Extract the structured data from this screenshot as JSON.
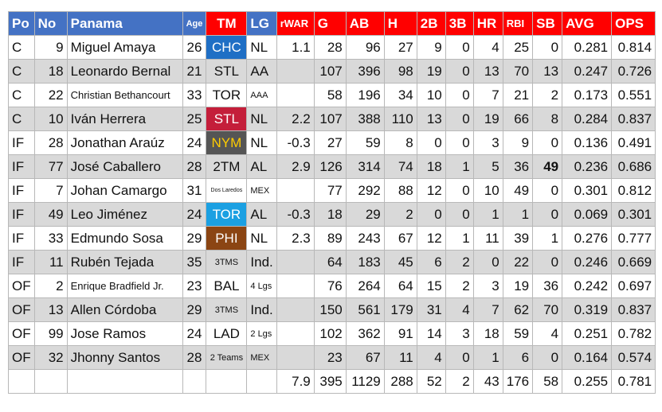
{
  "header": {
    "po": "Po",
    "no": "No",
    "team": "Panama",
    "age": "Age",
    "tm": "TM",
    "lg": "LG",
    "rwar": "rWAR",
    "g": "G",
    "ab": "AB",
    "h": "H",
    "2b": "2B",
    "3b": "3B",
    "hr": "HR",
    "rbi": "RBI",
    "sb": "SB",
    "avg": "AVG",
    "ops": "OPS"
  },
  "rows": [
    {
      "po": "C",
      "no": "9",
      "name": "Miguel Amaya",
      "age": "26",
      "tm": "CHC",
      "lg": "NL",
      "rwar": "1.1",
      "g": "28",
      "ab": "96",
      "h": "27",
      "b2": "9",
      "b3": "0",
      "hr": "4",
      "rbi": "25",
      "sb": "0",
      "avg": "0.281",
      "ops": "0.814"
    },
    {
      "po": "C",
      "no": "18",
      "name": "Leonardo Bernal",
      "age": "21",
      "tm": "STL",
      "lg": "AA",
      "rwar": "",
      "g": "107",
      "ab": "396",
      "h": "98",
      "b2": "19",
      "b3": "0",
      "hr": "13",
      "rbi": "70",
      "sb": "13",
      "avg": "0.247",
      "ops": "0.726"
    },
    {
      "po": "C",
      "no": "22",
      "name": "Christian Bethancourt",
      "age": "33",
      "tm": "TOR",
      "lg": "AAA",
      "rwar": "",
      "g": "58",
      "ab": "196",
      "h": "34",
      "b2": "10",
      "b3": "0",
      "hr": "7",
      "rbi": "21",
      "sb": "2",
      "avg": "0.173",
      "ops": "0.551"
    },
    {
      "po": "C",
      "no": "10",
      "name": "Iván Herrera",
      "age": "25",
      "tm": "STL",
      "lg": "NL",
      "rwar": "2.2",
      "g": "107",
      "ab": "388",
      "h": "110",
      "b2": "13",
      "b3": "0",
      "hr": "19",
      "rbi": "66",
      "sb": "8",
      "avg": "0.284",
      "ops": "0.837"
    },
    {
      "po": "IF",
      "no": "28",
      "name": "Jonathan Araúz",
      "age": "24",
      "tm": "NYM",
      "lg": "NL",
      "rwar": "-0.3",
      "g": "27",
      "ab": "59",
      "h": "8",
      "b2": "0",
      "b3": "0",
      "hr": "3",
      "rbi": "9",
      "sb": "0",
      "avg": "0.136",
      "ops": "0.491"
    },
    {
      "po": "IF",
      "no": "77",
      "name": "José Caballero",
      "age": "28",
      "tm": "2TM",
      "lg": "AL",
      "rwar": "2.9",
      "g": "126",
      "ab": "314",
      "h": "74",
      "b2": "18",
      "b3": "1",
      "hr": "5",
      "rbi": "36",
      "sb": "49",
      "avg": "0.236",
      "ops": "0.686"
    },
    {
      "po": "IF",
      "no": "7",
      "name": "Johan Camargo",
      "age": "31",
      "tm": "Dos Laredos",
      "lg": "MEX",
      "rwar": "",
      "g": "77",
      "ab": "292",
      "h": "88",
      "b2": "12",
      "b3": "0",
      "hr": "10",
      "rbi": "49",
      "sb": "0",
      "avg": "0.301",
      "ops": "0.812"
    },
    {
      "po": "IF",
      "no": "49",
      "name": "Leo Jiménez",
      "age": "24",
      "tm": "TOR",
      "lg": "AL",
      "rwar": "-0.3",
      "g": "18",
      "ab": "29",
      "h": "2",
      "b2": "0",
      "b3": "0",
      "hr": "1",
      "rbi": "1",
      "sb": "0",
      "avg": "0.069",
      "ops": "0.301"
    },
    {
      "po": "IF",
      "no": "33",
      "name": "Edmundo Sosa",
      "age": "29",
      "tm": "PHI",
      "lg": "NL",
      "rwar": "2.3",
      "g": "89",
      "ab": "243",
      "h": "67",
      "b2": "12",
      "b3": "1",
      "hr": "11",
      "rbi": "39",
      "sb": "1",
      "avg": "0.276",
      "ops": "0.777"
    },
    {
      "po": "IF",
      "no": "11",
      "name": "Rubén Tejada",
      "age": "35",
      "tm": "3TMS",
      "lg": "Ind.",
      "rwar": "",
      "g": "64",
      "ab": "183",
      "h": "45",
      "b2": "6",
      "b3": "2",
      "hr": "0",
      "rbi": "22",
      "sb": "0",
      "avg": "0.246",
      "ops": "0.669"
    },
    {
      "po": "OF",
      "no": "2",
      "name": "Enrique Bradfield Jr.",
      "age": "23",
      "tm": "BAL",
      "lg": "4 Lgs",
      "rwar": "",
      "g": "76",
      "ab": "264",
      "h": "64",
      "b2": "15",
      "b3": "2",
      "hr": "3",
      "rbi": "19",
      "sb": "36",
      "avg": "0.242",
      "ops": "0.697"
    },
    {
      "po": "OF",
      "no": "13",
      "name": "Allen Córdoba",
      "age": "29",
      "tm": "3TMS",
      "lg": "Ind.",
      "rwar": "",
      "g": "150",
      "ab": "561",
      "h": "179",
      "b2": "31",
      "b3": "4",
      "hr": "7",
      "rbi": "62",
      "sb": "70",
      "avg": "0.319",
      "ops": "0.837"
    },
    {
      "po": "OF",
      "no": "99",
      "name": "Jose Ramos",
      "age": "24",
      "tm": "LAD",
      "lg": "2 Lgs",
      "rwar": "",
      "g": "102",
      "ab": "362",
      "h": "91",
      "b2": "14",
      "b3": "3",
      "hr": "18",
      "rbi": "59",
      "sb": "4",
      "avg": "0.251",
      "ops": "0.782"
    },
    {
      "po": "OF",
      "no": "32",
      "name": "Jhonny Santos",
      "age": "28",
      "tm": "2 Teams",
      "lg": "MEX",
      "rwar": "",
      "g": "23",
      "ab": "67",
      "h": "11",
      "b2": "4",
      "b3": "0",
      "hr": "1",
      "rbi": "6",
      "sb": "0",
      "avg": "0.164",
      "ops": "0.574"
    }
  ],
  "totals": {
    "rwar": "7.9",
    "g": "395",
    "ab": "1129",
    "h": "288",
    "b2": "52",
    "b3": "2",
    "hr": "43",
    "rbi": "176",
    "sb": "58",
    "avg": "0.255",
    "ops": "0.781"
  },
  "colors": {
    "header_blue": "#4472c4",
    "header_red": "#ff0000",
    "row_alt": "#d9d9d9"
  }
}
